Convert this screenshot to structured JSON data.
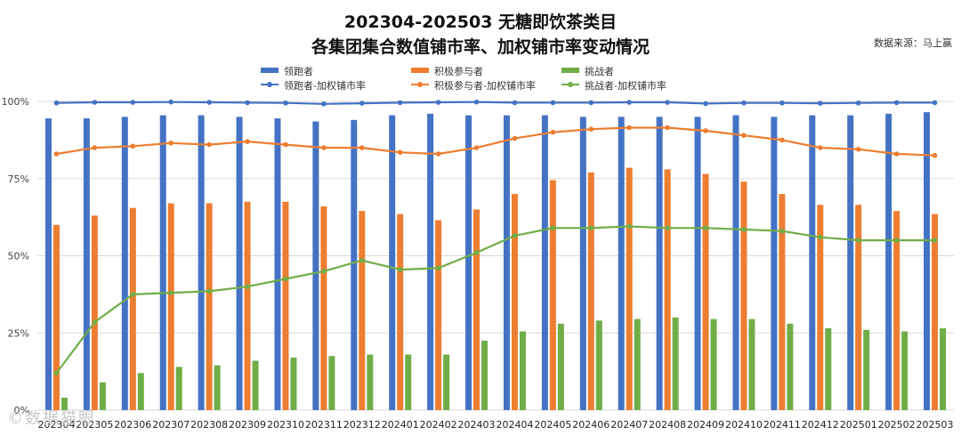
{
  "chart_data": {
    "type": "bar+line",
    "title": "202304-202503 无糖即饮茶类目",
    "subtitle": "各集团集合数值铺市率、加权铺市率变动情况",
    "source": "数据来源：马上赢",
    "categories": [
      "202304",
      "202305",
      "202306",
      "202307",
      "202308",
      "202309",
      "202310",
      "202311",
      "202312",
      "202401",
      "202402",
      "202403",
      "202404",
      "202405",
      "202406",
      "202407",
      "202408",
      "202409",
      "202410",
      "202411",
      "202412",
      "202501",
      "202502",
      "202503"
    ],
    "y_ticks": [
      "0%",
      "25%",
      "50%",
      "75%",
      "100%"
    ],
    "ylim": [
      0,
      100
    ],
    "colors": {
      "leader": "#4472C4",
      "participant": "#ED7D31",
      "challenger": "#70AD47"
    },
    "bar_series": [
      {
        "name": "领跑者",
        "key": "leader",
        "values": [
          94.5,
          94.5,
          95,
          95.5,
          95.5,
          95,
          94.5,
          93.5,
          94,
          95.5,
          96,
          95.5,
          95.5,
          95.5,
          95,
          95,
          95,
          95,
          95.5,
          95,
          95.5,
          95.5,
          96,
          96.5
        ]
      },
      {
        "name": "积极参与者",
        "key": "participant",
        "values": [
          60,
          63,
          65.5,
          67,
          67,
          67.5,
          67.5,
          66,
          64.5,
          63.5,
          61.5,
          65,
          70,
          74.5,
          77,
          78.5,
          78,
          76.5,
          74,
          70,
          66.5,
          66.5,
          64.5,
          63.5
        ]
      },
      {
        "name": "挑战者",
        "key": "challenger",
        "values": [
          4,
          9,
          12,
          14,
          14.5,
          16,
          17,
          17.5,
          18,
          18,
          18,
          22.5,
          25.5,
          28,
          29,
          29.5,
          30,
          29.5,
          29.5,
          28,
          26.5,
          26,
          25.5,
          26.5
        ]
      }
    ],
    "line_series": [
      {
        "name": "领跑者-加权铺市率",
        "key": "leader",
        "values": [
          99.5,
          99.7,
          99.7,
          99.8,
          99.7,
          99.6,
          99.5,
          99.2,
          99.4,
          99.6,
          99.7,
          99.8,
          99.6,
          99.6,
          99.6,
          99.7,
          99.7,
          99.3,
          99.5,
          99.5,
          99.4,
          99.5,
          99.6,
          99.6
        ]
      },
      {
        "name": "积极参与者-加权铺市率",
        "key": "participant",
        "values": [
          83,
          85,
          85.5,
          86.5,
          86,
          87,
          86,
          85,
          85,
          83.5,
          83,
          85,
          88,
          90,
          91,
          91.5,
          91.5,
          90.5,
          89,
          87.5,
          85,
          84.5,
          83,
          82.5
        ]
      },
      {
        "name": "挑战者-加权铺市率",
        "key": "challenger",
        "values": [
          12,
          28.5,
          37.5,
          38,
          38.5,
          40,
          42.5,
          45,
          48.5,
          45.5,
          46,
          51,
          56.5,
          59,
          59,
          59.5,
          59,
          59,
          58.5,
          58,
          56,
          55,
          55,
          55
        ]
      }
    ]
  },
  "watermark": "©数据猫眼"
}
